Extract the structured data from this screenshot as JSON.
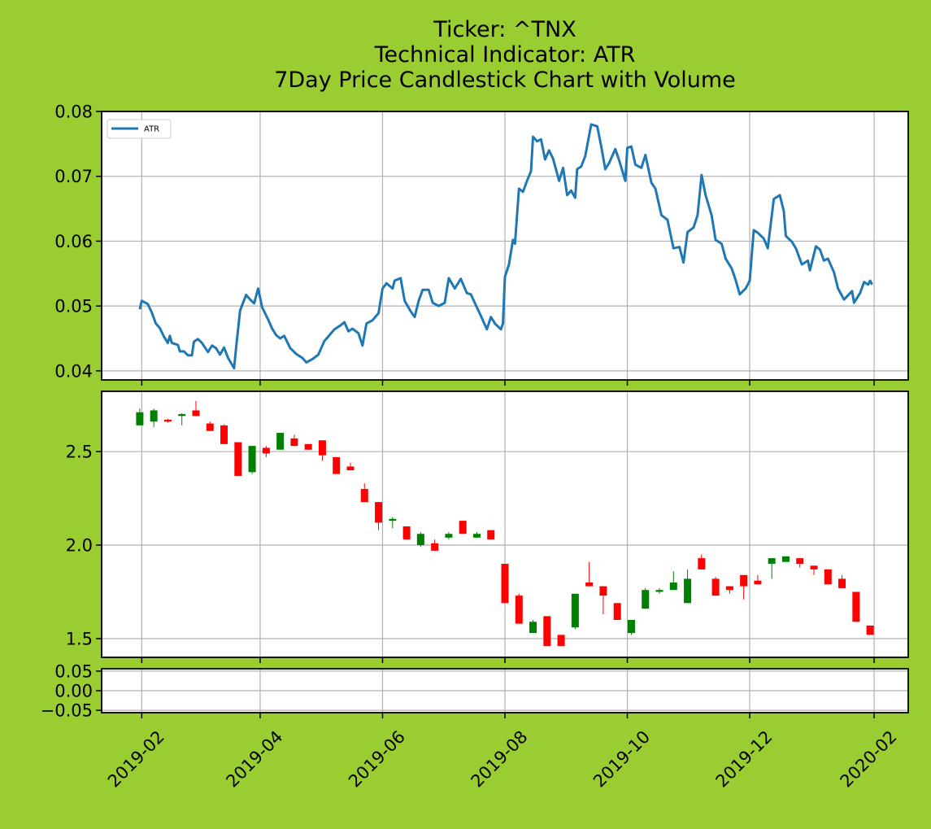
{
  "chart_data": [
    {
      "type": "line",
      "title": [
        "Ticker: ^TNX",
        "Technical Indicator: ATR",
        "7Day Price Candlestick Chart with Volume"
      ],
      "x": [
        "2019-01-31",
        "2019-02-01",
        "2019-02-04",
        "2019-02-06",
        "2019-02-08",
        "2019-02-10",
        "2019-02-12",
        "2019-02-14",
        "2019-02-15",
        "2019-02-16",
        "2019-02-19",
        "2019-02-20",
        "2019-02-22",
        "2019-02-24",
        "2019-02-26",
        "2019-02-27",
        "2019-03-01",
        "2019-03-03",
        "2019-03-06",
        "2019-03-08",
        "2019-03-10",
        "2019-03-12",
        "2019-03-14",
        "2019-03-16",
        "2019-03-19",
        "2019-03-20",
        "2019-03-22",
        "2019-03-25",
        "2019-03-27",
        "2019-03-29",
        "2019-03-31",
        "2019-04-02",
        "2019-04-05",
        "2019-04-07",
        "2019-04-09",
        "2019-04-11",
        "2019-04-13",
        "2019-04-16",
        "2019-04-19",
        "2019-04-22",
        "2019-04-24",
        "2019-04-27",
        "2019-04-30",
        "2019-05-03",
        "2019-05-05",
        "2019-05-08",
        "2019-05-11",
        "2019-05-13",
        "2019-05-15",
        "2019-05-17",
        "2019-05-20",
        "2019-05-22",
        "2019-05-24",
        "2019-05-27",
        "2019-05-30",
        "2019-06-01",
        "2019-06-03",
        "2019-06-06",
        "2019-06-07",
        "2019-06-10",
        "2019-06-12",
        "2019-06-15",
        "2019-06-17",
        "2019-06-19",
        "2019-06-21",
        "2019-06-24",
        "2019-06-26",
        "2019-06-29",
        "2019-07-02",
        "2019-07-04",
        "2019-07-07",
        "2019-07-10",
        "2019-07-13",
        "2019-07-15",
        "2019-07-18",
        "2019-07-20",
        "2019-07-23",
        "2019-07-25",
        "2019-07-27",
        "2019-07-30",
        "2019-07-31",
        "2019-08-01",
        "2019-08-03",
        "2019-08-05",
        "2019-08-06",
        "2019-08-08",
        "2019-08-10",
        "2019-08-12",
        "2019-08-14",
        "2019-08-15",
        "2019-08-17",
        "2019-08-19",
        "2019-08-21",
        "2019-08-23",
        "2019-08-25",
        "2019-08-28",
        "2019-08-30",
        "2019-09-01",
        "2019-09-03",
        "2019-09-05",
        "2019-09-06",
        "2019-09-08",
        "2019-09-10",
        "2019-09-13",
        "2019-09-16",
        "2019-09-18",
        "2019-09-20",
        "2019-09-22",
        "2019-09-25",
        "2019-09-27",
        "2019-09-30",
        "2019-10-01",
        "2019-10-03",
        "2019-10-05",
        "2019-10-08",
        "2019-10-10",
        "2019-10-13",
        "2019-10-15",
        "2019-10-18",
        "2019-10-21",
        "2019-10-24",
        "2019-10-27",
        "2019-10-29",
        "2019-10-31",
        "2019-11-03",
        "2019-11-05",
        "2019-11-07",
        "2019-11-09",
        "2019-11-12",
        "2019-11-14",
        "2019-11-17",
        "2019-11-19",
        "2019-11-22",
        "2019-11-24",
        "2019-11-26",
        "2019-11-29",
        "2019-12-01",
        "2019-12-03",
        "2019-12-05",
        "2019-12-08",
        "2019-12-10",
        "2019-12-13",
        "2019-12-16",
        "2019-12-18",
        "2019-12-19",
        "2019-12-22",
        "2019-12-24",
        "2019-12-27",
        "2019-12-30",
        "2019-12-31",
        "2020-01-03",
        "2020-01-05",
        "2020-01-07",
        "2020-01-09",
        "2020-01-12",
        "2020-01-14",
        "2020-01-17",
        "2020-01-21",
        "2020-01-22",
        "2020-01-25",
        "2020-01-27",
        "2020-01-29",
        "2020-01-30",
        "2020-01-31"
      ],
      "series": [
        {
          "name": "ATR",
          "color": "#1f77b4",
          "values": [
            0.0495,
            0.0508,
            0.0503,
            0.049,
            0.0473,
            0.0466,
            0.0453,
            0.0443,
            0.0454,
            0.0443,
            0.044,
            0.043,
            0.043,
            0.0424,
            0.0424,
            0.0445,
            0.0449,
            0.0443,
            0.0429,
            0.0439,
            0.0435,
            0.0425,
            0.0436,
            0.042,
            0.0404,
            0.0435,
            0.0493,
            0.0517,
            0.051,
            0.0504,
            0.0527,
            0.0498,
            0.0479,
            0.0465,
            0.0455,
            0.045,
            0.0454,
            0.0435,
            0.0426,
            0.042,
            0.0413,
            0.0418,
            0.0425,
            0.0446,
            0.0453,
            0.0464,
            0.047,
            0.0475,
            0.0461,
            0.0465,
            0.0458,
            0.0439,
            0.0473,
            0.0478,
            0.0489,
            0.0527,
            0.0535,
            0.0527,
            0.0539,
            0.0543,
            0.0508,
            0.0492,
            0.0483,
            0.0508,
            0.0525,
            0.0525,
            0.0505,
            0.05,
            0.0505,
            0.0543,
            0.0527,
            0.0542,
            0.052,
            0.0518,
            0.0498,
            0.0485,
            0.0464,
            0.0483,
            0.0473,
            0.0464,
            0.0473,
            0.0545,
            0.0564,
            0.0602,
            0.0596,
            0.0681,
            0.0676,
            0.0693,
            0.0708,
            0.0761,
            0.0754,
            0.0757,
            0.0726,
            0.074,
            0.0727,
            0.0693,
            0.0713,
            0.0671,
            0.0678,
            0.0667,
            0.0711,
            0.0715,
            0.0731,
            0.078,
            0.0777,
            0.0746,
            0.0711,
            0.0721,
            0.0742,
            0.0724,
            0.0693,
            0.0744,
            0.0746,
            0.0718,
            0.0713,
            0.0733,
            0.069,
            0.0681,
            0.064,
            0.0633,
            0.0589,
            0.0591,
            0.0567,
            0.0614,
            0.0621,
            0.064,
            0.0702,
            0.0671,
            0.064,
            0.0602,
            0.0596,
            0.0573,
            0.0558,
            0.054,
            0.0518,
            0.0527,
            0.0539,
            0.0617,
            0.0613,
            0.0604,
            0.0589,
            0.0665,
            0.0671,
            0.0646,
            0.0608,
            0.0599,
            0.0589,
            0.0564,
            0.057,
            0.0555,
            0.0592,
            0.0587,
            0.057,
            0.0573,
            0.0552,
            0.0527,
            0.051,
            0.0523,
            0.0505,
            0.052,
            0.0537,
            0.0533,
            0.0539,
            0.0533
          ]
        }
      ],
      "ylim": [
        0.0386,
        0.08
      ],
      "yticks": [
        0.04,
        0.05,
        0.06,
        0.07,
        0.08
      ],
      "grid": true,
      "legend": "upper left"
    },
    {
      "type": "candlestick",
      "x": [
        "2019-01-31",
        "2019-02-07",
        "2019-02-14",
        "2019-02-21",
        "2019-02-28",
        "2019-03-07",
        "2019-03-14",
        "2019-03-21",
        "2019-03-28",
        "2019-04-04",
        "2019-04-11",
        "2019-04-18",
        "2019-04-25",
        "2019-05-02",
        "2019-05-09",
        "2019-05-16",
        "2019-05-23",
        "2019-05-30",
        "2019-06-06",
        "2019-06-13",
        "2019-06-20",
        "2019-06-27",
        "2019-07-04",
        "2019-07-11",
        "2019-07-18",
        "2019-07-25",
        "2019-08-01",
        "2019-08-08",
        "2019-08-15",
        "2019-08-22",
        "2019-08-29",
        "2019-09-05",
        "2019-09-12",
        "2019-09-19",
        "2019-09-26",
        "2019-10-03",
        "2019-10-10",
        "2019-10-17",
        "2019-10-24",
        "2019-10-31",
        "2019-11-07",
        "2019-11-14",
        "2019-11-21",
        "2019-11-28",
        "2019-12-05",
        "2019-12-12",
        "2019-12-19",
        "2019-12-26",
        "2020-01-02",
        "2020-01-09",
        "2020-01-16",
        "2020-01-23",
        "2020-01-30"
      ],
      "open": [
        2.64,
        2.66,
        2.67,
        2.69,
        2.72,
        2.65,
        2.64,
        2.55,
        2.39,
        2.52,
        2.51,
        2.57,
        2.54,
        2.56,
        2.47,
        2.42,
        2.3,
        2.23,
        2.13,
        2.1,
        2.0,
        2.01,
        2.04,
        2.13,
        2.04,
        2.08,
        1.9,
        1.73,
        1.53,
        1.62,
        1.52,
        1.56,
        1.8,
        1.78,
        1.69,
        1.53,
        1.66,
        1.75,
        1.76,
        1.69,
        1.93,
        1.82,
        1.78,
        1.84,
        1.81,
        1.9,
        1.91,
        1.93,
        1.89,
        1.87,
        1.82,
        1.75,
        1.57
      ],
      "high": [
        2.73,
        2.73,
        2.675,
        2.705,
        2.77,
        2.66,
        2.645,
        2.55,
        2.53,
        2.53,
        2.6,
        2.59,
        2.54,
        2.56,
        2.47,
        2.44,
        2.33,
        2.23,
        2.15,
        2.1,
        2.07,
        2.03,
        2.07,
        2.13,
        2.07,
        2.08,
        1.9,
        1.74,
        1.6,
        1.62,
        1.52,
        1.74,
        1.91,
        1.78,
        1.69,
        1.6,
        1.77,
        1.77,
        1.86,
        1.87,
        1.95,
        1.83,
        1.78,
        1.84,
        1.84,
        1.93,
        1.94,
        1.93,
        1.89,
        1.87,
        1.84,
        1.75,
        1.57
      ],
      "low": [
        2.64,
        2.63,
        2.655,
        2.64,
        2.69,
        2.61,
        2.54,
        2.37,
        2.38,
        2.47,
        2.51,
        2.53,
        2.51,
        2.45,
        2.38,
        2.4,
        2.23,
        2.08,
        2.09,
        2.03,
        1.99,
        1.97,
        2.03,
        2.06,
        2.04,
        2.03,
        1.69,
        1.58,
        1.53,
        1.46,
        1.46,
        1.55,
        1.78,
        1.63,
        1.6,
        1.52,
        1.66,
        1.74,
        1.76,
        1.69,
        1.87,
        1.73,
        1.74,
        1.71,
        1.79,
        1.82,
        1.91,
        1.88,
        1.84,
        1.79,
        1.77,
        1.59,
        1.52
      ],
      "close": [
        2.71,
        2.72,
        2.66,
        2.7,
        2.69,
        2.61,
        2.54,
        2.37,
        2.53,
        2.49,
        2.6,
        2.53,
        2.51,
        2.48,
        2.38,
        2.4,
        2.23,
        2.12,
        2.14,
        2.03,
        2.06,
        1.97,
        2.06,
        2.06,
        2.06,
        2.03,
        1.69,
        1.58,
        1.59,
        1.46,
        1.46,
        1.74,
        1.78,
        1.73,
        1.6,
        1.6,
        1.76,
        1.76,
        1.8,
        1.82,
        1.87,
        1.73,
        1.76,
        1.78,
        1.79,
        1.93,
        1.94,
        1.9,
        1.87,
        1.79,
        1.77,
        1.59,
        1.52
      ],
      "up_color": "green",
      "down_color": "red",
      "ylim": [
        1.4,
        2.822
      ],
      "yticks": [
        {
          "value": 1.5,
          "label": "1.5"
        },
        {
          "value": 2,
          "label": "2.0"
        },
        {
          "value": 2.5,
          "label": "2.5"
        }
      ],
      "grid": true
    },
    {
      "type": "volume",
      "ylim": [
        -0.056,
        0.056
      ],
      "yticks": [
        {
          "value": -0.05,
          "label": "−0.05"
        },
        {
          "value": 0,
          "label": "0.00"
        },
        {
          "value": 0.05,
          "label": "0.05"
        }
      ],
      "xlim": [
        "2019-01-12",
        "2020-02-18"
      ],
      "xticks": [
        "2019-02",
        "2019-04",
        "2019-06",
        "2019-08",
        "2019-10",
        "2019-12",
        "2020-02"
      ],
      "grid": true
    }
  ]
}
